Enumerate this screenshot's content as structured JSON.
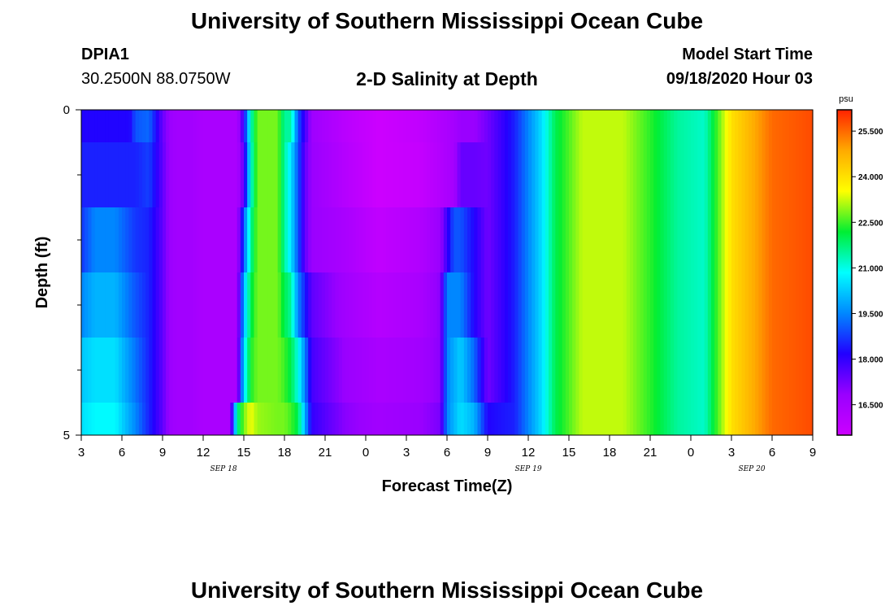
{
  "header": {
    "title": "University of Southern Mississippi Ocean Cube",
    "station": "DPIA1",
    "location": "30.2500N 88.0750W",
    "model_label": "Model Start Time",
    "model_time": "09/18/2020 Hour 03"
  },
  "footer": {
    "title": "University of Southern Mississippi Ocean Cube"
  },
  "chart_data": {
    "type": "heatmap",
    "title": "2-D Salinity at Depth",
    "xlabel": "Forecast Time(Z)",
    "ylabel": "Depth (ft)",
    "xlim": [
      0,
      54
    ],
    "ylim": [
      0,
      5
    ],
    "x_ticks": [
      {
        "v": 0,
        "label": "3"
      },
      {
        "v": 3,
        "label": "6"
      },
      {
        "v": 6,
        "label": "9"
      },
      {
        "v": 9,
        "label": "12"
      },
      {
        "v": 12,
        "label": "15"
      },
      {
        "v": 15,
        "label": "18"
      },
      {
        "v": 18,
        "label": "21"
      },
      {
        "v": 21,
        "label": "0"
      },
      {
        "v": 24,
        "label": "3"
      },
      {
        "v": 27,
        "label": "6"
      },
      {
        "v": 30,
        "label": "9"
      },
      {
        "v": 33,
        "label": "12"
      },
      {
        "v": 36,
        "label": "15"
      },
      {
        "v": 39,
        "label": "18"
      },
      {
        "v": 42,
        "label": "21"
      },
      {
        "v": 45,
        "label": "0"
      },
      {
        "v": 48,
        "label": "3"
      },
      {
        "v": 51,
        "label": "6"
      },
      {
        "v": 54,
        "label": "9"
      }
    ],
    "date_labels": [
      {
        "v": 10.5,
        "label": "SEP 18"
      },
      {
        "v": 33,
        "label": "SEP 19"
      },
      {
        "v": 49.5,
        "label": "SEP 20"
      }
    ],
    "y_tick_labels": [
      {
        "v": 0,
        "label": "0"
      },
      {
        "v": 5,
        "label": "5"
      }
    ],
    "y_minor_ticks": [
      1,
      2,
      3,
      4
    ],
    "depth_levels": [
      0,
      0.5,
      1.5,
      2.5,
      3.5,
      4.5
    ],
    "colorbar": {
      "unit": "psu",
      "min": 15.5,
      "max": 26.2,
      "ticks": [
        16.5,
        18.0,
        19.5,
        21.0,
        22.5,
        24.0,
        25.5
      ],
      "tick_labels": [
        "16.500",
        "18.000",
        "19.500",
        "21.000",
        "22.500",
        "24.000",
        "25.500"
      ],
      "colors": [
        "#cc00ff",
        "#9900ff",
        "#2200ff",
        "#0088ff",
        "#00ffff",
        "#00ee33",
        "#ffff00",
        "#ffaa00",
        "#ff2200"
      ]
    },
    "series": [
      {
        "name": "0 ft",
        "x": [
          0,
          3.6,
          4,
          5,
          6,
          6.5,
          7,
          8,
          9,
          11.5,
          12,
          12.5,
          13,
          14.5,
          15,
          15.5,
          16,
          17,
          19.5,
          22,
          25,
          27.5,
          28,
          29,
          30,
          32,
          34,
          35,
          37,
          40,
          42,
          44,
          46,
          48,
          51,
          54
        ],
        "values": [
          18.2,
          18.2,
          19,
          19.2,
          17.4,
          16.8,
          16.6,
          16.6,
          16.4,
          16.4,
          18,
          21.2,
          22.8,
          22.8,
          21.5,
          21.5,
          19,
          16.7,
          16,
          15.5,
          15.8,
          16.5,
          16.8,
          16.8,
          17.3,
          18.5,
          20.5,
          22,
          23.2,
          23.2,
          22.4,
          21.5,
          21.2,
          24,
          25.5,
          25.8
        ]
      },
      {
        "name": "0.5 ft",
        "x": [
          0,
          4,
          5,
          6,
          6.5,
          7,
          8,
          9,
          11.5,
          12,
          12.5,
          13,
          14.5,
          15,
          15.5,
          16,
          16.5,
          17,
          19.5,
          22,
          25,
          27.5,
          28,
          29,
          30,
          32,
          34,
          35,
          37,
          40,
          42,
          44,
          46,
          48,
          51,
          54
        ],
        "values": [
          18.5,
          18.5,
          18.8,
          17.5,
          16.8,
          16.6,
          16.6,
          16.4,
          16.4,
          17.5,
          21,
          22.8,
          22.8,
          21.5,
          20.5,
          19,
          17.5,
          16.8,
          16.1,
          15.5,
          15.7,
          16.5,
          17.4,
          17.4,
          17.3,
          18.5,
          20.5,
          22,
          23.2,
          23.2,
          22.4,
          21.5,
          21.2,
          24,
          25.5,
          25.8
        ]
      },
      {
        "name": "1.5 ft",
        "x": [
          0,
          1,
          2.5,
          4,
          5,
          6,
          6.5,
          7,
          8,
          9,
          11.5,
          12,
          12.5,
          13,
          14.5,
          15,
          15.5,
          16,
          16.5,
          17,
          19.5,
          22,
          25,
          26.5,
          27.5,
          28,
          29,
          30,
          32,
          34,
          35,
          37,
          40,
          42,
          44,
          46,
          48,
          51,
          54
        ],
        "values": [
          18.7,
          19.5,
          19.5,
          18.7,
          18.5,
          17.5,
          16.8,
          16.6,
          16.6,
          16.4,
          16.4,
          19,
          21.5,
          22.8,
          22.8,
          21.5,
          20.5,
          19,
          17.5,
          16.8,
          16.4,
          15.8,
          16.2,
          16.8,
          19,
          19,
          18.2,
          17.3,
          18.5,
          20.5,
          22,
          23.2,
          23.2,
          22.4,
          21.5,
          21.2,
          24,
          25.5,
          25.8
        ]
      },
      {
        "name": "2.5 ft",
        "x": [
          0,
          1,
          2.5,
          4,
          5,
          6,
          6.5,
          7,
          8,
          9,
          11.5,
          12,
          12.5,
          13,
          14.5,
          15,
          15.5,
          16,
          16.5,
          17,
          19.5,
          22,
          25,
          26.5,
          27,
          28,
          29,
          30,
          32,
          34,
          35,
          37,
          40,
          42,
          44,
          46,
          48,
          51,
          54
        ],
        "values": [
          19.5,
          20,
          20,
          19,
          18.5,
          17.5,
          16.8,
          16.6,
          16.6,
          16.4,
          16.4,
          20,
          22,
          22.8,
          22.8,
          22,
          21.5,
          19.5,
          18.5,
          17.5,
          16.6,
          16.1,
          16.4,
          17,
          19.5,
          19.5,
          18.2,
          17.3,
          18.5,
          20.5,
          22,
          23.2,
          23.2,
          22.4,
          21.5,
          21.2,
          24,
          25.5,
          25.8
        ]
      },
      {
        "name": "3.5 ft",
        "x": [
          0,
          1,
          2.5,
          4,
          5,
          6,
          6.5,
          7,
          8,
          9,
          11.5,
          12,
          12.5,
          13,
          14.5,
          15,
          15.5,
          16,
          16.5,
          17,
          19.5,
          22,
          25,
          26.5,
          27,
          28,
          29,
          30,
          32,
          34,
          35,
          37,
          40,
          42,
          44,
          46,
          48,
          51,
          54
        ],
        "values": [
          20.2,
          20.5,
          20.5,
          19.3,
          18.5,
          17.5,
          16.8,
          16.6,
          16.6,
          16.4,
          16.4,
          20.5,
          22.3,
          22.8,
          22.8,
          22.5,
          22,
          21,
          19.5,
          17.8,
          16.8,
          16.4,
          16.6,
          17,
          19.5,
          20.3,
          19.2,
          17.3,
          18.5,
          20.5,
          22,
          23.2,
          23.2,
          22.4,
          21.5,
          21.2,
          24,
          25.5,
          25.8
        ]
      },
      {
        "name": "4.5 ft",
        "x": [
          0,
          1,
          2.5,
          4,
          5,
          6,
          6.5,
          7,
          8,
          9,
          11,
          11.5,
          12,
          12.5,
          13,
          14.5,
          15,
          15.5,
          16,
          16.5,
          17,
          19.5,
          22,
          25,
          26.5,
          27,
          28,
          29,
          30,
          32,
          34,
          35,
          37,
          40,
          42,
          44,
          46,
          48,
          51,
          54
        ],
        "values": [
          20.5,
          20.8,
          20.8,
          19.5,
          18.5,
          17.5,
          16.8,
          16.6,
          16.6,
          16.4,
          16.4,
          21.5,
          22.8,
          23.5,
          23,
          22.8,
          22.8,
          22.5,
          22,
          20,
          18,
          17,
          16.6,
          16.8,
          17.2,
          19.5,
          20.5,
          20,
          18.2,
          18.5,
          20.5,
          22,
          23.2,
          23.2,
          22.4,
          21.5,
          21.2,
          24,
          25.5,
          25.8
        ]
      }
    ]
  }
}
